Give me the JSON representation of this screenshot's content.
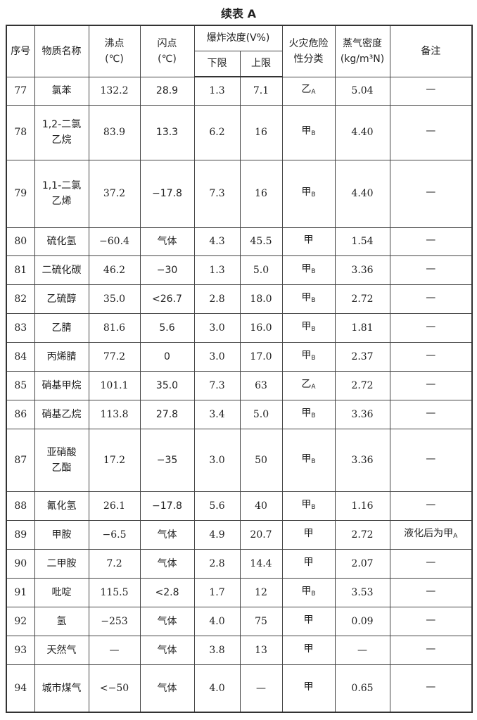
{
  "title": "续表 A",
  "headers": {
    "no": "序号",
    "name": "物质名称",
    "boiling": "沸点",
    "boiling_unit": "(℃)",
    "flash": "闪点",
    "flash_unit": "(℃)",
    "explosive": "爆炸浓度(V%)",
    "lower": "下限",
    "upper": "上限",
    "hazard_1": "火灾危险",
    "hazard_2": "性分类",
    "density": "蒸气密度",
    "density_unit": "(kg/m³N)",
    "remark": "备注"
  },
  "rows": [
    {
      "no": "77",
      "name": [
        "氯苯"
      ],
      "bp": "132.2",
      "fp": "28.9",
      "lo": "1.3",
      "hi": "7.1",
      "hz": "乙",
      "hzs": "A",
      "den": "5.04",
      "rm": "—",
      "rms": ""
    },
    {
      "no": "78",
      "name": [
        "1,2-二氯",
        "乙烷"
      ],
      "bp": "83.9",
      "fp": "13.3",
      "lo": "6.2",
      "hi": "16",
      "hz": "甲",
      "hzs": "B",
      "den": "4.40",
      "rm": "—",
      "rms": ""
    },
    {
      "no": "79",
      "name": [
        "1,1-二氯",
        "乙烯"
      ],
      "bp": "37.2",
      "fp": "−17.8",
      "lo": "7.3",
      "hi": "16",
      "hz": "甲",
      "hzs": "B",
      "den": "4.40",
      "rm": "—",
      "rms": ""
    },
    {
      "no": "80",
      "name": [
        "硫化氢"
      ],
      "bp": "−60.4",
      "fp": "气体",
      "lo": "4.3",
      "hi": "45.5",
      "hz": "甲",
      "hzs": "",
      "den": "1.54",
      "rm": "—",
      "rms": ""
    },
    {
      "no": "81",
      "name": [
        "二硫化碳"
      ],
      "bp": "46.2",
      "fp": "−30",
      "lo": "1.3",
      "hi": "5.0",
      "hz": "甲",
      "hzs": "B",
      "den": "3.36",
      "rm": "—",
      "rms": ""
    },
    {
      "no": "82",
      "name": [
        "乙硫醇"
      ],
      "bp": "35.0",
      "fp": "<26.7",
      "lo": "2.8",
      "hi": "18.0",
      "hz": "甲",
      "hzs": "B",
      "den": "2.72",
      "rm": "—",
      "rms": ""
    },
    {
      "no": "83",
      "name": [
        "乙腈"
      ],
      "bp": "81.6",
      "fp": "5.6",
      "lo": "3.0",
      "hi": "16.0",
      "hz": "甲",
      "hzs": "B",
      "den": "1.81",
      "rm": "—",
      "rms": ""
    },
    {
      "no": "84",
      "name": [
        "丙烯腈"
      ],
      "bp": "77.2",
      "fp": "0",
      "lo": "3.0",
      "hi": "17.0",
      "hz": "甲",
      "hzs": "B",
      "den": "2.37",
      "rm": "—",
      "rms": ""
    },
    {
      "no": "85",
      "name": [
        "硝基甲烷"
      ],
      "bp": "101.1",
      "fp": "35.0",
      "lo": "7.3",
      "hi": "63",
      "hz": "乙",
      "hzs": "A",
      "den": "2.72",
      "rm": "—",
      "rms": ""
    },
    {
      "no": "86",
      "name": [
        "硝基乙烷"
      ],
      "bp": "113.8",
      "fp": "27.8",
      "lo": "3.4",
      "hi": "5.0",
      "hz": "甲",
      "hzs": "B",
      "den": "3.36",
      "rm": "—",
      "rms": ""
    },
    {
      "no": "87",
      "name": [
        "亚硝酸",
        "乙酯"
      ],
      "bp": "17.2",
      "fp": "−35",
      "lo": "3.0",
      "hi": "50",
      "hz": "甲",
      "hzs": "B",
      "den": "3.36",
      "rm": "—",
      "rms": ""
    },
    {
      "no": "88",
      "name": [
        "氰化氢"
      ],
      "bp": "26.1",
      "fp": "−17.8",
      "lo": "5.6",
      "hi": "40",
      "hz": "甲",
      "hzs": "B",
      "den": "1.16",
      "rm": "—",
      "rms": ""
    },
    {
      "no": "89",
      "name": [
        "甲胺"
      ],
      "bp": "−6.5",
      "fp": "气体",
      "lo": "4.9",
      "hi": "20.7",
      "hz": "甲",
      "hzs": "",
      "den": "2.72",
      "rm": "液化后为甲",
      "rms": "A"
    },
    {
      "no": "90",
      "name": [
        "二甲胺"
      ],
      "bp": "7.2",
      "fp": "气体",
      "lo": "2.8",
      "hi": "14.4",
      "hz": "甲",
      "hzs": "",
      "den": "2.07",
      "rm": "—",
      "rms": ""
    },
    {
      "no": "91",
      "name": [
        "吡啶"
      ],
      "bp": "115.5",
      "fp": "<2.8",
      "lo": "1.7",
      "hi": "12",
      "hz": "甲",
      "hzs": "B",
      "den": "3.53",
      "rm": "—",
      "rms": ""
    },
    {
      "no": "92",
      "name": [
        "氢"
      ],
      "bp": "−253",
      "fp": "气体",
      "lo": "4.0",
      "hi": "75",
      "hz": "甲",
      "hzs": "",
      "den": "0.09",
      "rm": "—",
      "rms": ""
    },
    {
      "no": "93",
      "name": [
        "天然气"
      ],
      "bp": "—",
      "fp": "气体",
      "lo": "3.8",
      "hi": "13",
      "hz": "甲",
      "hzs": "",
      "den": "—",
      "rm": "—",
      "rms": ""
    },
    {
      "no": "94",
      "name": [
        "城市煤气"
      ],
      "bp": "<−50",
      "fp": "气体",
      "lo": "4.0",
      "hi": "—",
      "hz": "甲",
      "hzs": "",
      "den": "0.65",
      "rm": "—",
      "rms": ""
    }
  ]
}
